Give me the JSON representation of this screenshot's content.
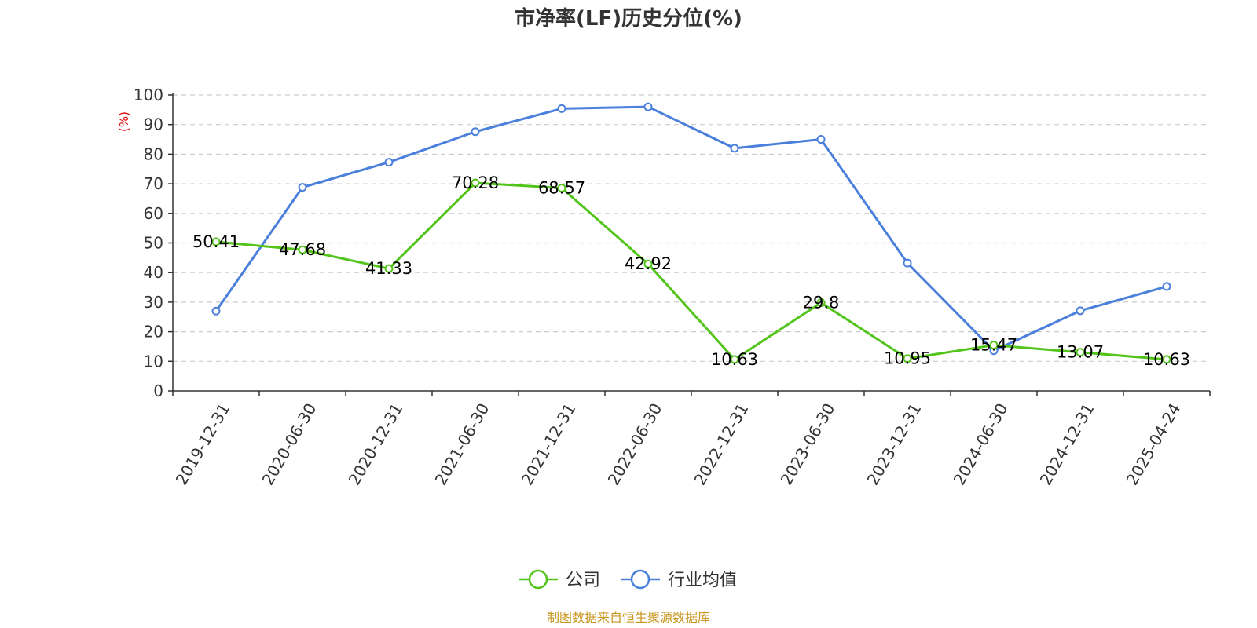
{
  "chart_data": {
    "type": "line",
    "title": "市净率(LF)历史分位(%)",
    "ylabel": "(%)",
    "ylim": [
      0,
      100
    ],
    "yticks": [
      0,
      10,
      20,
      30,
      40,
      50,
      60,
      70,
      80,
      90,
      100
    ],
    "categories": [
      "2019-12-31",
      "2020-06-30",
      "2020-12-31",
      "2021-06-30",
      "2021-12-31",
      "2022-06-30",
      "2022-12-31",
      "2023-06-30",
      "2023-12-31",
      "2024-06-30",
      "2024-12-31",
      "2025-04-24"
    ],
    "grid": true,
    "legend_position": "bottom",
    "series": [
      {
        "name": "公司",
        "color": "#52c41a",
        "show_labels": true,
        "values": [
          50.41,
          47.68,
          41.33,
          70.28,
          68.57,
          42.92,
          10.63,
          29.8,
          10.95,
          15.47,
          13.07,
          10.63
        ]
      },
      {
        "name": "行业均值",
        "color": "#4a7fdc",
        "show_labels": false,
        "values": [
          27,
          68.8,
          77.3,
          87.6,
          95.4,
          96,
          82,
          85,
          43.2,
          13.6,
          27.1,
          35.3
        ]
      }
    ]
  },
  "footer": {
    "text": "制图数据来自恒生聚源数据库",
    "color": "#c8961e"
  },
  "colors": {
    "label": "#e00000",
    "axis": "#333333",
    "grid": "#cccccc"
  }
}
